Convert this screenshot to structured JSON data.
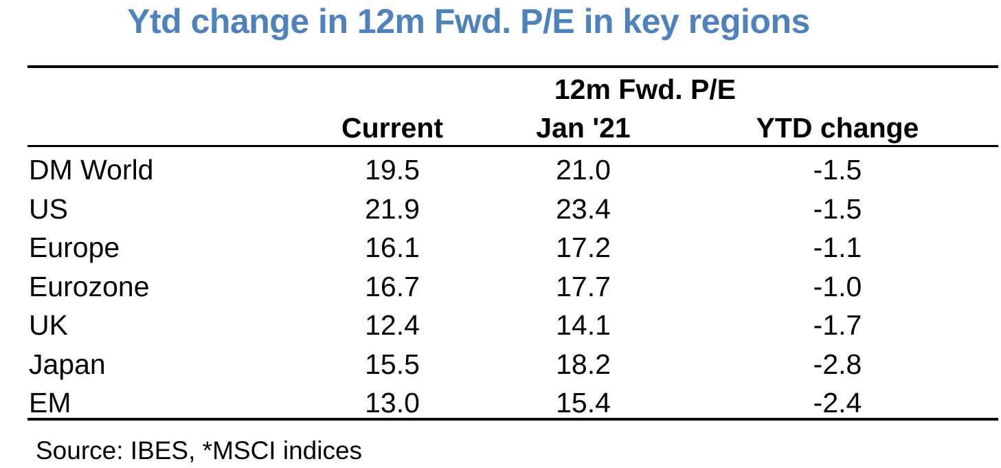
{
  "title": "Ytd change in 12m Fwd. P/E in key regions",
  "chart_data": {
    "type": "table",
    "title": "Ytd change in 12m Fwd. P/E in key regions",
    "group_header": "12m Fwd. P/E",
    "columns": [
      "Current",
      "Jan '21",
      "YTD change"
    ],
    "rows": [
      {
        "region": "DM World",
        "current": "19.5",
        "jan21": "21.0",
        "ytd_change": "-1.5"
      },
      {
        "region": "US",
        "current": "21.9",
        "jan21": "23.4",
        "ytd_change": "-1.5"
      },
      {
        "region": "Europe",
        "current": "16.1",
        "jan21": "17.2",
        "ytd_change": "-1.1"
      },
      {
        "region": "Eurozone",
        "current": "16.7",
        "jan21": "17.7",
        "ytd_change": "-1.0"
      },
      {
        "region": "UK",
        "current": "12.4",
        "jan21": "14.1",
        "ytd_change": "-1.7"
      },
      {
        "region": "Japan",
        "current": "15.5",
        "jan21": "18.2",
        "ytd_change": "-2.8"
      },
      {
        "region": "EM",
        "current": "13.0",
        "jan21": "15.4",
        "ytd_change": "-2.4"
      }
    ]
  },
  "source": "Source: IBES, *MSCI indices",
  "colors": {
    "title": "#4f81bd",
    "text": "#000000",
    "rules": "#000000"
  }
}
